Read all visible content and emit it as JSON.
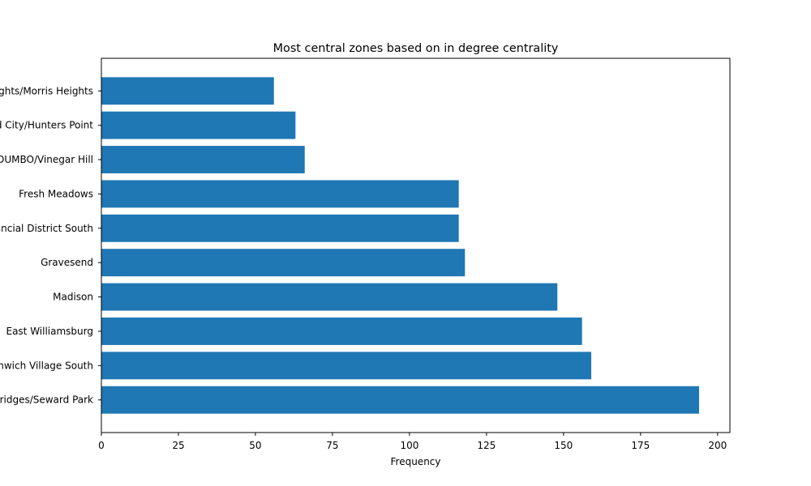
{
  "chart_data": {
    "type": "bar",
    "orientation": "horizontal",
    "title": "Most central zones based on in degree centrality",
    "xlabel": "Frequency",
    "ylabel": "",
    "categories": [
      "Two Bridges/Seward Park",
      "Greenwich Village South",
      "East Williamsburg",
      "Madison",
      "Gravesend",
      "Financial District South",
      "Fresh Meadows",
      "DUMBO/Vinegar Hill",
      "Long Island City/Hunters Point",
      "University Heights/Morris Heights"
    ],
    "values": [
      194,
      159,
      156,
      148,
      118,
      116,
      116,
      66,
      63,
      56
    ],
    "xlim": [
      0,
      204
    ],
    "xticks": [
      0,
      25,
      50,
      75,
      100,
      125,
      150,
      175,
      200
    ],
    "grid": false,
    "bar_color": "#1f77b4"
  }
}
